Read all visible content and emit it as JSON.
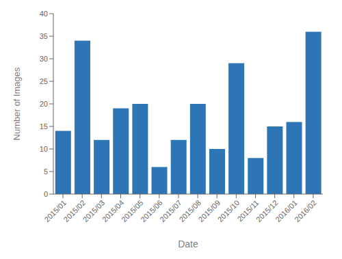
{
  "chart_data": {
    "type": "bar",
    "categories": [
      "2015/01",
      "2015/02",
      "2015/03",
      "2015/04",
      "2015/05",
      "2015/06",
      "2015/07",
      "2015/08",
      "2015/09",
      "2015/10",
      "2015/11",
      "2015/12",
      "2016/01",
      "2016/02"
    ],
    "values": [
      14,
      34,
      12,
      19,
      20,
      6,
      12,
      20,
      10,
      29,
      8,
      15,
      16,
      36
    ],
    "color": "#2e75b6",
    "xlabel": "Date",
    "ylabel": "Number of Images",
    "ylim": [
      0,
      40
    ],
    "yticks": [
      0,
      5,
      10,
      15,
      20,
      25,
      30,
      35,
      40
    ],
    "grid": false
  }
}
